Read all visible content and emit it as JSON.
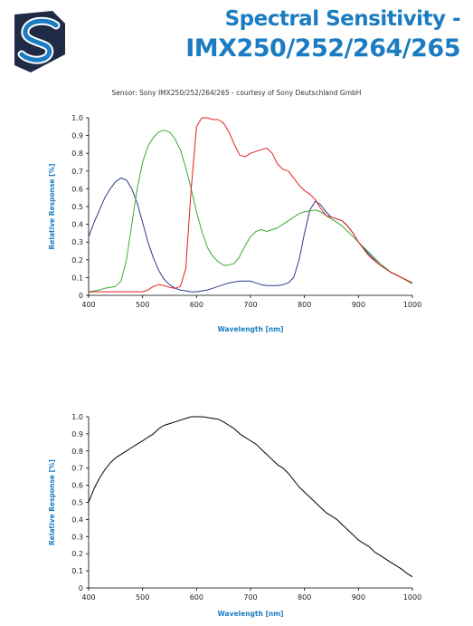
{
  "header": {
    "title_line1": "Spectral Sensitivity -",
    "title_line2": "IMX250/252/264/265",
    "credit": "Sensor: Sony IMX250/252/264/265 - courtesy of Sony Deutschland GmbH",
    "brand_color": "#1b7cc1",
    "logo": "stripe-s-logo"
  },
  "chart_data": [
    {
      "type": "line",
      "title": "",
      "xlabel": "Wavelength [nm]",
      "ylabel": "Relative Response [%]",
      "xlim": [
        400,
        1000
      ],
      "ylim": [
        0,
        1.0
      ],
      "xticks": [
        "400",
        "500",
        "600",
        "700",
        "800",
        "900",
        "1000"
      ],
      "yticks": [
        "0",
        "0.1",
        "0.2",
        "0.3",
        "0.4",
        "0.5",
        "0.6",
        "0.7",
        "0.8",
        "0.9",
        "1.0"
      ],
      "grid": false,
      "series": [
        {
          "color": "#2e3a8c",
          "x": [
            400,
            410,
            420,
            430,
            440,
            450,
            460,
            470,
            480,
            490,
            500,
            510,
            520,
            530,
            540,
            550,
            560,
            570,
            580,
            590,
            600,
            610,
            620,
            630,
            640,
            650,
            660,
            670,
            680,
            690,
            700,
            710,
            720,
            730,
            740,
            750,
            760,
            770,
            780,
            790,
            800,
            810,
            820,
            830,
            840,
            850,
            860,
            870,
            880,
            890,
            900,
            920,
            940,
            960,
            980,
            1000
          ],
          "y": [
            0.33,
            0.41,
            0.48,
            0.55,
            0.6,
            0.64,
            0.66,
            0.65,
            0.6,
            0.52,
            0.41,
            0.3,
            0.21,
            0.14,
            0.09,
            0.06,
            0.04,
            0.03,
            0.025,
            0.02,
            0.02,
            0.025,
            0.03,
            0.04,
            0.05,
            0.06,
            0.07,
            0.075,
            0.08,
            0.08,
            0.08,
            0.07,
            0.06,
            0.055,
            0.055,
            0.055,
            0.06,
            0.07,
            0.1,
            0.2,
            0.35,
            0.48,
            0.53,
            0.51,
            0.47,
            0.44,
            0.43,
            0.42,
            0.39,
            0.35,
            0.3,
            0.23,
            0.17,
            0.13,
            0.1,
            0.07
          ]
        },
        {
          "color": "#3aaa35",
          "x": [
            400,
            410,
            420,
            430,
            440,
            450,
            460,
            470,
            480,
            490,
            500,
            510,
            520,
            530,
            540,
            550,
            560,
            570,
            580,
            590,
            600,
            610,
            620,
            630,
            640,
            650,
            660,
            670,
            680,
            690,
            700,
            710,
            720,
            730,
            740,
            750,
            760,
            770,
            780,
            790,
            800,
            810,
            820,
            830,
            840,
            850,
            860,
            870,
            880,
            890,
            900,
            920,
            940,
            960,
            980,
            1000
          ],
          "y": [
            0.02,
            0.025,
            0.03,
            0.04,
            0.045,
            0.05,
            0.08,
            0.2,
            0.4,
            0.6,
            0.75,
            0.84,
            0.89,
            0.92,
            0.93,
            0.92,
            0.88,
            0.82,
            0.72,
            0.6,
            0.47,
            0.36,
            0.27,
            0.22,
            0.19,
            0.17,
            0.17,
            0.18,
            0.22,
            0.28,
            0.33,
            0.36,
            0.37,
            0.36,
            0.37,
            0.38,
            0.4,
            0.42,
            0.44,
            0.46,
            0.47,
            0.475,
            0.48,
            0.47,
            0.45,
            0.43,
            0.41,
            0.39,
            0.36,
            0.33,
            0.3,
            0.24,
            0.18,
            0.13,
            0.1,
            0.065
          ]
        },
        {
          "color": "#e31e24",
          "x": [
            400,
            420,
            440,
            460,
            480,
            500,
            510,
            520,
            530,
            540,
            550,
            560,
            570,
            580,
            590,
            600,
            610,
            620,
            630,
            640,
            650,
            660,
            670,
            680,
            690,
            700,
            710,
            720,
            730,
            740,
            750,
            760,
            770,
            780,
            790,
            800,
            810,
            820,
            830,
            840,
            850,
            860,
            870,
            880,
            890,
            900,
            920,
            940,
            960,
            980,
            1000
          ],
          "y": [
            0.02,
            0.02,
            0.02,
            0.02,
            0.02,
            0.02,
            0.03,
            0.05,
            0.06,
            0.055,
            0.045,
            0.04,
            0.05,
            0.15,
            0.6,
            0.95,
            1.0,
            1.0,
            0.99,
            0.99,
            0.97,
            0.92,
            0.85,
            0.79,
            0.78,
            0.8,
            0.81,
            0.82,
            0.83,
            0.8,
            0.74,
            0.71,
            0.7,
            0.66,
            0.62,
            0.59,
            0.57,
            0.54,
            0.49,
            0.45,
            0.44,
            0.43,
            0.42,
            0.39,
            0.35,
            0.3,
            0.22,
            0.17,
            0.13,
            0.1,
            0.07
          ]
        }
      ]
    },
    {
      "type": "line",
      "title": "",
      "xlabel": "Wavelength [nm]",
      "ylabel": "Relative Response [%]",
      "xlim": [
        400,
        1000
      ],
      "ylim": [
        0,
        1.0
      ],
      "xticks": [
        "400",
        "500",
        "600",
        "700",
        "800",
        "900",
        "1000"
      ],
      "yticks": [
        "0",
        "0.1",
        "0.2",
        "0.3",
        "0.4",
        "0.5",
        "0.6",
        "0.7",
        "0.8",
        "0.9",
        "1.0"
      ],
      "grid": false,
      "series": [
        {
          "color": "#000000",
          "x": [
            400,
            410,
            420,
            430,
            440,
            450,
            460,
            470,
            480,
            490,
            500,
            510,
            520,
            530,
            540,
            550,
            560,
            570,
            580,
            590,
            600,
            610,
            620,
            630,
            640,
            650,
            660,
            670,
            680,
            690,
            700,
            710,
            720,
            730,
            740,
            750,
            760,
            770,
            780,
            790,
            800,
            810,
            820,
            830,
            840,
            850,
            860,
            870,
            880,
            890,
            900,
            910,
            920,
            930,
            940,
            950,
            960,
            970,
            980,
            990,
            1000
          ],
          "y": [
            0.5,
            0.58,
            0.64,
            0.69,
            0.73,
            0.76,
            0.78,
            0.8,
            0.82,
            0.84,
            0.86,
            0.88,
            0.9,
            0.93,
            0.95,
            0.96,
            0.97,
            0.98,
            0.99,
            1.0,
            1.0,
            1.0,
            0.995,
            0.99,
            0.985,
            0.97,
            0.95,
            0.93,
            0.9,
            0.88,
            0.86,
            0.84,
            0.81,
            0.78,
            0.75,
            0.72,
            0.7,
            0.67,
            0.63,
            0.59,
            0.56,
            0.53,
            0.5,
            0.47,
            0.44,
            0.42,
            0.4,
            0.37,
            0.34,
            0.31,
            0.28,
            0.26,
            0.24,
            0.21,
            0.19,
            0.17,
            0.15,
            0.13,
            0.11,
            0.085,
            0.065
          ]
        }
      ]
    }
  ]
}
